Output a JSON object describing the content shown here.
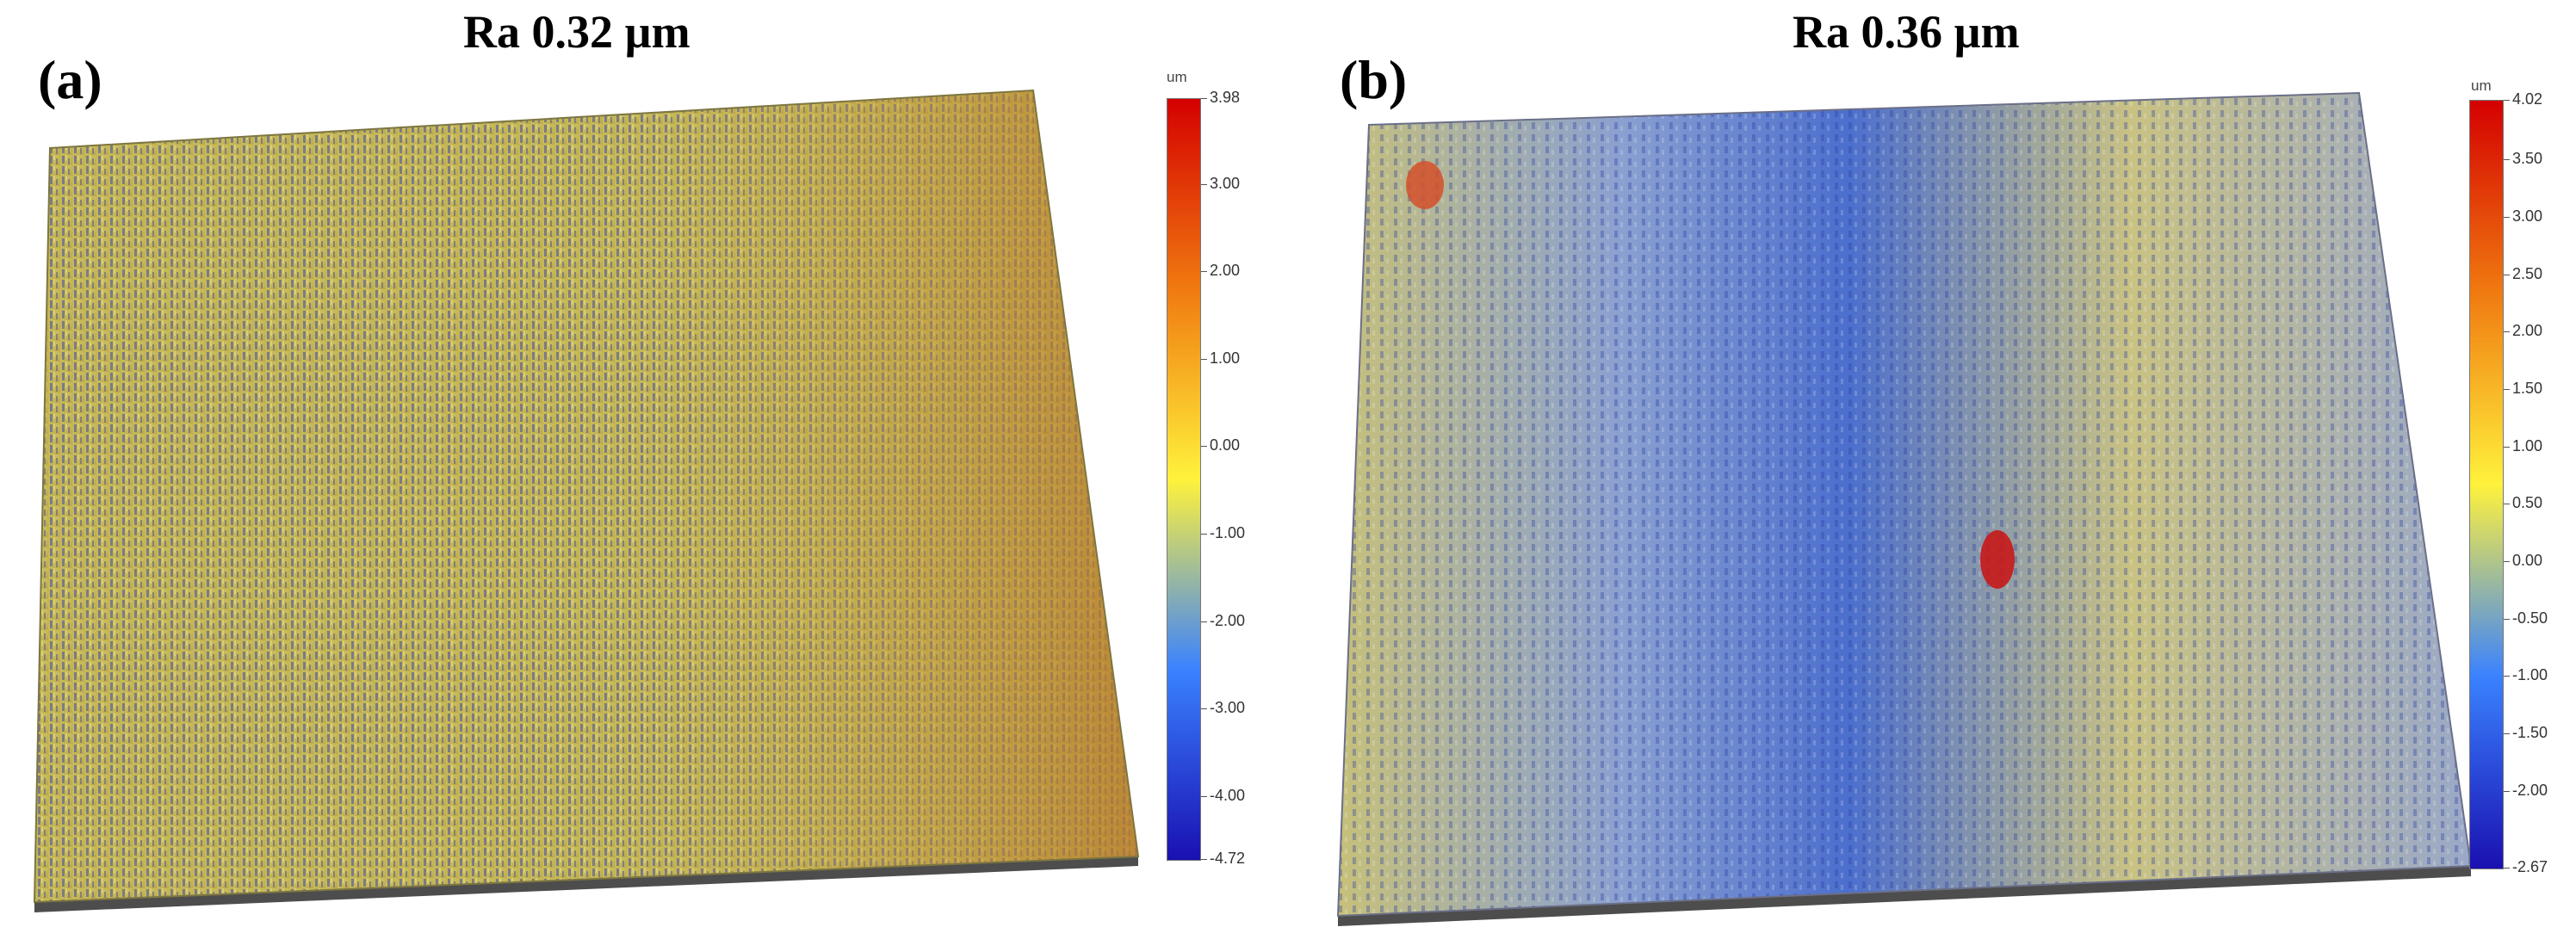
{
  "panels": [
    {
      "letter": "(a)",
      "title": "Ra 0.32 µm",
      "colorbar": {
        "unit": "um",
        "max": "3.98",
        "min": "-4.72",
        "ticks": [
          "3.00",
          "2.00",
          "1.00",
          "0.00",
          "-1.00",
          "-2.00",
          "-3.00",
          "-4.00"
        ],
        "colors": [
          "#d40000",
          "#f07a10",
          "#fff23c",
          "#3a82ff",
          "#1a10b0"
        ]
      }
    },
    {
      "letter": "(b)",
      "title": "Ra 0.36 µm",
      "colorbar": {
        "unit": "um",
        "max": "4.02",
        "min": "-2.67",
        "ticks": [
          "3.50",
          "3.00",
          "2.50",
          "2.00",
          "1.50",
          "1.00",
          "0.50",
          "0.00",
          "-0.50",
          "-1.00",
          "-1.50",
          "-2.00"
        ],
        "colors": [
          "#d40000",
          "#f07a10",
          "#fff23c",
          "#3a82ff",
          "#1a10b0"
        ]
      }
    }
  ]
}
